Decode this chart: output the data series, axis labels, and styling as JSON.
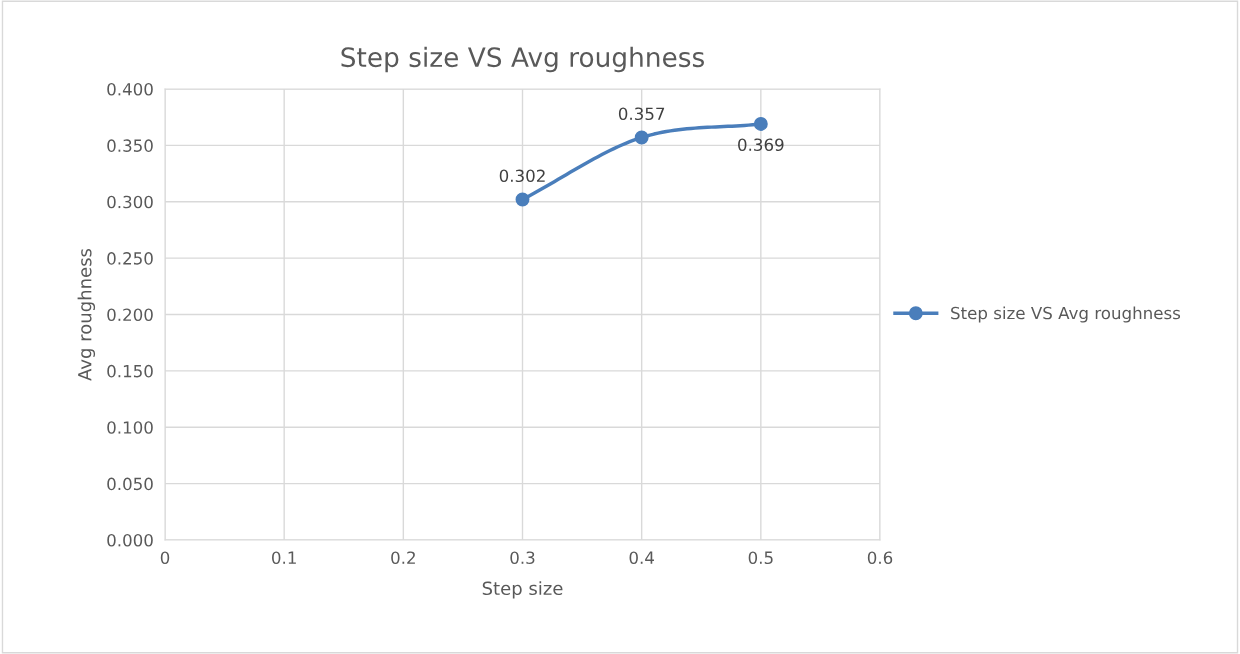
{
  "chart_data": {
    "type": "line",
    "title": "Step size VS Avg roughness",
    "xlabel": "Step size",
    "ylabel": "Avg roughness",
    "x": [
      0.3,
      0.4,
      0.5
    ],
    "series": [
      {
        "name": "Step size VS Avg roughness",
        "color": "#4a7ebb",
        "values": [
          0.302,
          0.357,
          0.369
        ]
      }
    ],
    "xlim": [
      0,
      0.6
    ],
    "xticks": [
      0,
      0.1,
      0.2,
      0.3,
      0.4,
      0.5,
      0.6
    ],
    "ylim": [
      0,
      0.4
    ],
    "yticks": [
      {
        "value": 0,
        "label": "0.000"
      },
      {
        "value": 0.05,
        "label": "0.050"
      },
      {
        "value": 0.1,
        "label": "0.100"
      },
      {
        "value": 0.15,
        "label": "0.150"
      },
      {
        "value": 0.2,
        "label": "0.200"
      },
      {
        "value": 0.25,
        "label": "0.250"
      },
      {
        "value": 0.3,
        "label": "0.300"
      },
      {
        "value": 0.35,
        "label": "0.350"
      },
      {
        "value": 0.4,
        "label": "0.400"
      }
    ],
    "grid": true,
    "legend": "right",
    "marker": "circle",
    "line_style": "solid",
    "data_labels": true
  }
}
